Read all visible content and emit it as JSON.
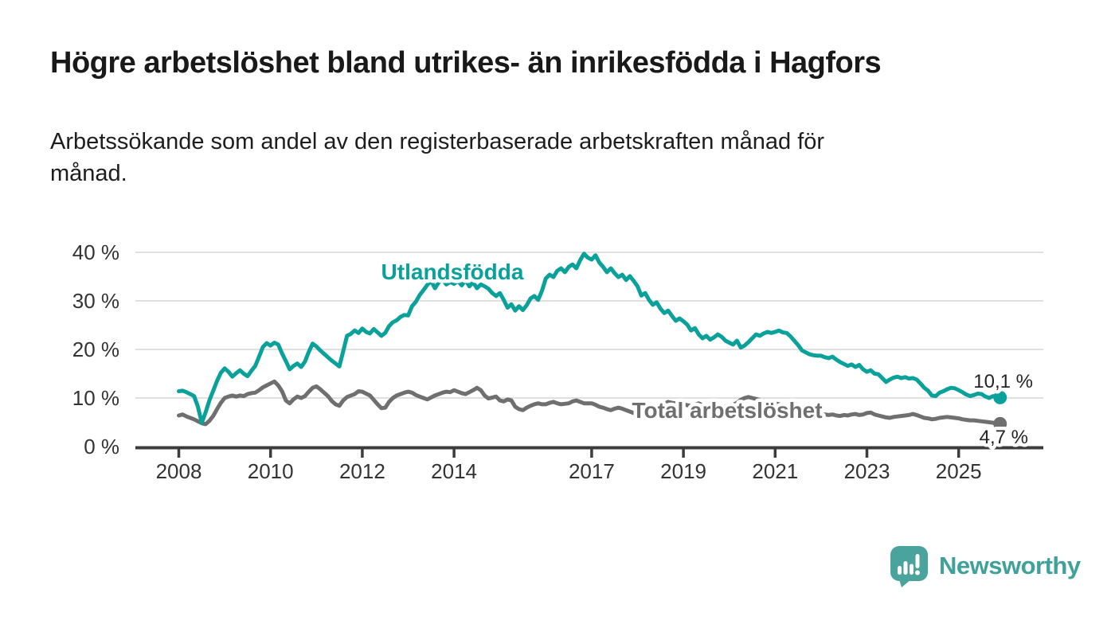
{
  "header": {
    "title": "Högre arbetslöshet bland utrikes- än inrikesfödda i Hagfors",
    "subtitle_line1": "Arbetssökande som andel av den registerbaserade arbetskraften månad för",
    "subtitle_line2": "månad."
  },
  "footer": {
    "brand": "Newsworthy"
  },
  "colors": {
    "accent_teal": "#0aa19a",
    "series_gray": "#6f6f6f",
    "axis": "#3c3c3c",
    "grid": "#dcdcdc",
    "logo_teal": "#4aa39c",
    "logo_text": "#3fa19a"
  },
  "chart_data": {
    "type": "line",
    "title": "Högre arbetslöshet bland utrikes- än inrikesfödda i Hagfors",
    "subtitle": "Arbetssökande som andel av den registerbaserade arbetskraften månad för månad.",
    "x_unit": "month",
    "x_start_year": 2008,
    "x_end": "2025-11",
    "grid": true,
    "legend_position": "inline-labels",
    "x_axis": {
      "ticks": [
        2008,
        2010,
        2012,
        2014,
        2017,
        2019,
        2021,
        2023,
        2025
      ]
    },
    "y_axis": {
      "ticks": [
        0,
        10,
        20,
        30,
        40
      ],
      "suffix": " %",
      "min": 0,
      "max": 40
    },
    "series": [
      {
        "id": "utlandsfodda",
        "name": "Utlandsfödda",
        "color": "#0aa19a",
        "end_label": "10,1 %",
        "end_value": 10.1,
        "values": [
          11.4,
          11.5,
          11.2,
          10.8,
          10.4,
          8.2,
          4.9,
          7.0,
          9.5,
          11.5,
          13.5,
          15.2,
          16.1,
          15.4,
          14.4,
          15.1,
          15.7,
          15.0,
          14.5,
          15.6,
          16.6,
          18.5,
          20.5,
          21.3,
          20.8,
          21.4,
          21.0,
          19.2,
          17.6,
          15.9,
          16.6,
          17.1,
          16.4,
          17.5,
          19.5,
          21.2,
          20.6,
          19.8,
          19.1,
          18.4,
          17.7,
          17.1,
          16.5,
          19.6,
          22.8,
          23.2,
          23.9,
          23.4,
          24.3,
          23.6,
          23.3,
          24.2,
          23.5,
          22.8,
          23.4,
          24.8,
          25.6,
          26.0,
          26.7,
          27.1,
          27.0,
          28.9,
          29.8,
          31.2,
          32.2,
          33.3,
          34.1,
          32.6,
          33.8,
          34.3,
          33.4,
          33.9,
          33.5,
          34.1,
          33.2,
          34.3,
          33.0,
          33.8,
          32.6,
          33.4,
          33.0,
          32.5,
          31.6,
          31.0,
          31.6,
          30.2,
          28.6,
          29.3,
          28.0,
          28.9,
          28.1,
          29.1,
          30.5,
          31.0,
          30.2,
          32.1,
          34.6,
          35.4,
          34.9,
          36.2,
          36.7,
          35.9,
          37.0,
          37.5,
          36.7,
          38.4,
          39.7,
          38.9,
          38.5,
          39.4,
          37.9,
          37.0,
          35.9,
          36.7,
          35.7,
          34.9,
          35.4,
          34.3,
          35.1,
          34.1,
          33.0,
          31.1,
          31.6,
          30.2,
          29.2,
          29.7,
          28.4,
          27.5,
          28.0,
          26.9,
          25.9,
          26.4,
          25.8,
          25.1,
          23.9,
          24.4,
          23.1,
          22.3,
          22.8,
          22.0,
          22.5,
          23.1,
          22.6,
          21.8,
          21.4,
          21.0,
          21.8,
          20.4,
          20.8,
          21.5,
          22.3,
          23.1,
          22.8,
          23.3,
          23.6,
          23.4,
          23.6,
          23.9,
          23.5,
          23.4,
          22.7,
          21.8,
          20.9,
          19.8,
          19.4,
          19.0,
          18.8,
          18.7,
          18.7,
          18.4,
          18.2,
          18.5,
          17.9,
          17.4,
          17.0,
          16.6,
          16.9,
          16.4,
          16.8,
          15.9,
          15.4,
          15.7,
          15.0,
          14.9,
          14.1,
          13.3,
          13.8,
          14.2,
          14.4,
          14.1,
          14.3,
          14.0,
          14.1,
          13.8,
          13.0,
          12.1,
          11.5,
          10.5,
          10.4,
          11.1,
          11.4,
          11.8,
          12.1,
          12.0,
          11.6,
          11.2,
          10.7,
          10.4,
          10.6,
          10.9,
          10.8,
          10.3,
          10.0,
          10.4,
          10.1
        ]
      },
      {
        "id": "total",
        "name": "Total arbetslöshet",
        "color": "#6f6f6f",
        "end_label": "4,7 %",
        "end_value": 4.7,
        "values": [
          6.4,
          6.6,
          6.2,
          5.9,
          5.6,
          5.2,
          4.8,
          4.6,
          5.3,
          6.3,
          7.7,
          9.0,
          10.0,
          10.3,
          10.5,
          10.3,
          10.5,
          10.4,
          10.8,
          11.0,
          11.1,
          11.6,
          12.2,
          12.6,
          13.0,
          13.4,
          12.6,
          11.4,
          9.5,
          8.9,
          9.7,
          10.3,
          10.0,
          10.4,
          11.3,
          12.1,
          12.4,
          11.8,
          11.1,
          10.4,
          9.4,
          8.7,
          8.4,
          9.5,
          10.2,
          10.5,
          10.8,
          11.4,
          11.3,
          10.9,
          10.5,
          9.6,
          8.7,
          7.9,
          8.0,
          9.2,
          10.0,
          10.5,
          10.8,
          11.1,
          11.3,
          11.1,
          10.6,
          10.3,
          10.0,
          9.7,
          10.1,
          10.5,
          10.8,
          11.1,
          11.3,
          11.2,
          11.6,
          11.3,
          11.0,
          10.8,
          11.2,
          11.6,
          12.1,
          11.6,
          10.5,
          9.9,
          10.1,
          10.3,
          9.5,
          9.3,
          9.7,
          9.5,
          8.2,
          7.7,
          7.5,
          8.0,
          8.4,
          8.7,
          8.9,
          8.7,
          8.7,
          9.0,
          9.2,
          8.9,
          8.7,
          8.8,
          8.9,
          9.3,
          9.5,
          9.2,
          8.9,
          8.9,
          8.9,
          8.6,
          8.2,
          8.0,
          7.7,
          7.5,
          7.8,
          8.0,
          7.8,
          7.5,
          7.2,
          6.9,
          6.7,
          7.0,
          7.3,
          7.7,
          8.0,
          8.3,
          8.5,
          8.8,
          9.2,
          9.0,
          8.9,
          8.8,
          8.7,
          8.5,
          8.4,
          8.6,
          8.9,
          8.5,
          8.0,
          8.2,
          8.4,
          8.3,
          8.2,
          8.3,
          8.5,
          8.6,
          9.0,
          9.6,
          10.0,
          10.2,
          10.0,
          9.8,
          9.6,
          9.3,
          9.1,
          9.0,
          8.9,
          8.7,
          8.5,
          8.2,
          8.0,
          7.7,
          7.5,
          7.3,
          7.1,
          6.9,
          6.8,
          6.7,
          6.7,
          6.6,
          6.5,
          6.6,
          6.4,
          6.3,
          6.5,
          6.4,
          6.6,
          6.7,
          6.5,
          6.6,
          6.9,
          7.0,
          6.6,
          6.4,
          6.2,
          6.0,
          5.9,
          6.1,
          6.2,
          6.3,
          6.4,
          6.5,
          6.7,
          6.5,
          6.2,
          5.9,
          5.8,
          5.6,
          5.7,
          5.9,
          6.0,
          6.1,
          6.0,
          5.9,
          5.8,
          5.6,
          5.5,
          5.4,
          5.4,
          5.3,
          5.2,
          5.1,
          5.0,
          4.9,
          4.7
        ]
      }
    ]
  }
}
